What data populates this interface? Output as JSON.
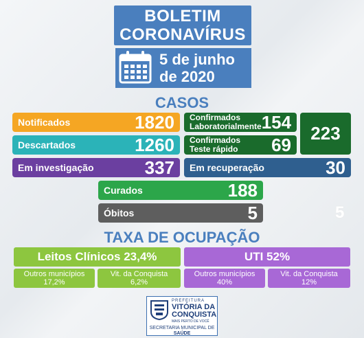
{
  "header": {
    "title_line1": "BOLETIM",
    "title_line2": "CORONAVÍRUS",
    "date_line1": "5 de junho",
    "date_line2": "de 2020"
  },
  "casos": {
    "title": "CASOS",
    "notificados": {
      "label": "Notificados",
      "value": "1820"
    },
    "descartados": {
      "label": "Descartados",
      "value": "1260"
    },
    "investigacao": {
      "label": "Em investigação",
      "value": "337"
    },
    "conf_lab": {
      "label_line1": "Confirmados",
      "label_line2": "Laboratorialmente",
      "value": "154"
    },
    "conf_teste": {
      "label_line1": "Confirmados",
      "label_line2": "Teste rápido",
      "value": "69"
    },
    "conf_total": "223",
    "recuperacao": {
      "label": "Em recuperação",
      "value": "30"
    },
    "curados": {
      "label": "Curados",
      "value": "188"
    },
    "obitos": {
      "label": "Óbitos",
      "value": "5"
    },
    "ghost_value": "5"
  },
  "ocupacao": {
    "title": "TAXA DE OCUPAÇÃO",
    "leitos": {
      "label": "Leitos Clínicos 23,4%"
    },
    "uti": {
      "label": "UTI 52%"
    },
    "leitos_outros": {
      "line1": "Outros municípios",
      "line2": "17,2%"
    },
    "leitos_vit": {
      "line1": "Vit. da Conquista",
      "line2": "6,2%"
    },
    "uti_outros": {
      "line1": "Outros municípios",
      "line2": "40%"
    },
    "uti_vit": {
      "line1": "Vit. da Conquista",
      "line2": "12%"
    }
  },
  "footer": {
    "prefeitura": "PREFEITURA",
    "city_line1": "VITÓRIA DA",
    "city_line2": "CONQUISTA",
    "slogan": "MAIS PERTO DE VOCÊ",
    "secretaria_line1": "SECRETARIA MUNICIPAL DE",
    "secretaria_line2": "SAÚDE"
  },
  "colors": {
    "brand_blue": "#4a7fbe",
    "orange": "#f5a623",
    "teal": "#2bb3b8",
    "purple": "#6b3fa0",
    "dark_green": "#1a6b2c",
    "navy": "#2f5f8f",
    "green": "#2ca64a",
    "gray": "#5e5e5e",
    "lime": "#8dc63f",
    "lilac": "#a868d6"
  }
}
